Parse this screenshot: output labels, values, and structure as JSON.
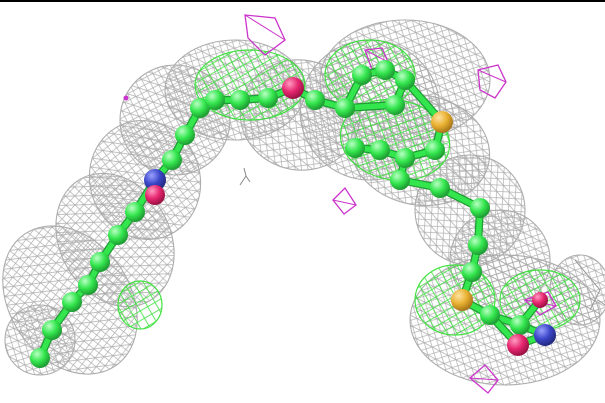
{
  "scene": {
    "kind": "molecular-structure-electron-density",
    "colors": {
      "background": "#ffffff",
      "frame_line": "#000000",
      "density_mesh": "#a9a9a9",
      "positive_difference_mesh": "#33e033",
      "negative_difference_mesh": "#cc33cc",
      "carbon": "#33e64d",
      "carbon_highlight": "#b9ffc4",
      "oxygen": "#e6266f",
      "nitrogen": "#3b46c8",
      "sulfur": "#e8b030",
      "bond": "#33e64d"
    },
    "atom_legend": [
      "carbon",
      "oxygen",
      "nitrogen",
      "sulfur"
    ]
  }
}
